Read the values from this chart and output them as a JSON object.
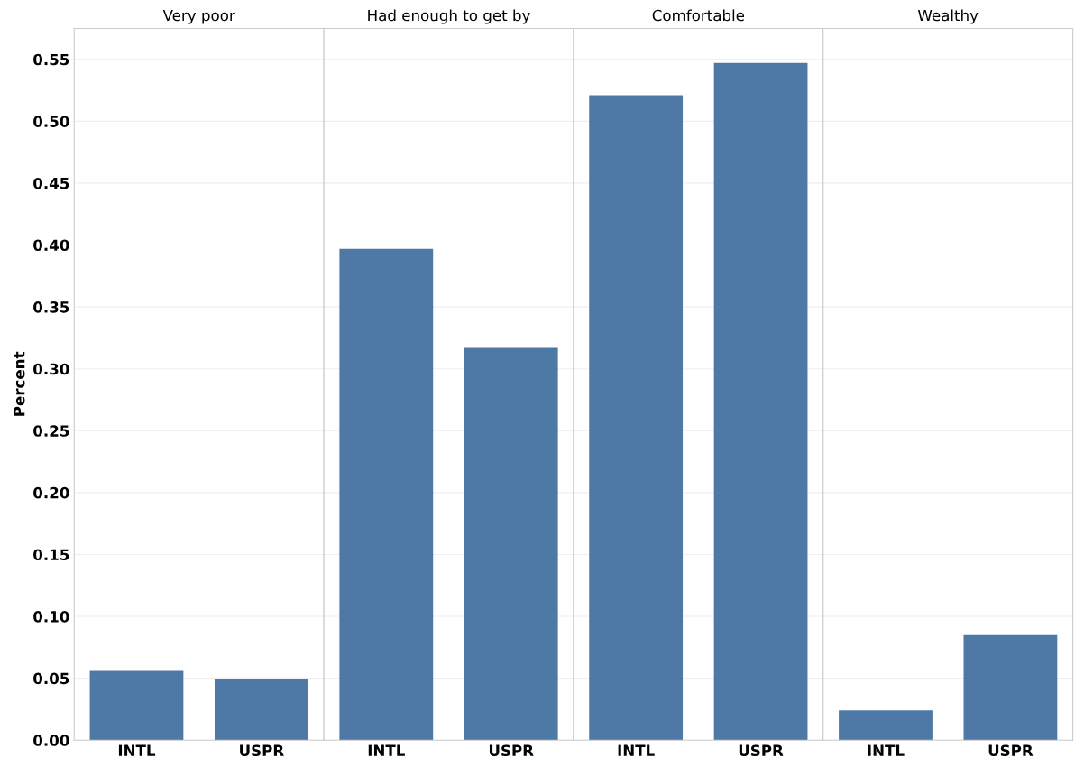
{
  "chart_data": [
    {
      "type": "bar",
      "title": "Very poor",
      "ylabel": "Percent",
      "categories": [
        "INTL",
        "USPR"
      ],
      "values": [
        0.056,
        0.049
      ],
      "color": "#4e79a7",
      "ylim": [
        0,
        0.575
      ],
      "yticks": [
        {
          "value": 0,
          "label": "0.00"
        },
        0.05,
        {
          "value": 0.1,
          "label": "0.10"
        },
        0.15,
        {
          "value": 0.2,
          "label": "0.20"
        },
        0.25,
        {
          "value": 0.3,
          "label": "0.30"
        },
        0.35,
        {
          "value": 0.4,
          "label": "0.40"
        },
        0.45,
        {
          "value": 0.5,
          "label": "0.50"
        },
        0.55
      ],
      "grid": "y"
    },
    {
      "type": "bar",
      "title": "Had enough to get by",
      "categories": [
        "INTL",
        "USPR"
      ],
      "values": [
        0.397,
        0.317
      ],
      "color": "#4e79a7",
      "ylim": [
        0,
        0.575
      ],
      "yticks": [
        {
          "value": 0,
          "label": null
        },
        {
          "value": 0.05,
          "label": null
        },
        {
          "value": 0.1,
          "label": null
        },
        {
          "value": 0.15,
          "label": null
        },
        {
          "value": 0.2,
          "label": null
        },
        {
          "value": 0.25,
          "label": null
        },
        {
          "value": 0.3,
          "label": null
        },
        {
          "value": 0.35,
          "label": null
        },
        {
          "value": 0.4,
          "label": null
        },
        {
          "value": 0.45,
          "label": null
        },
        {
          "value": 0.5,
          "label": null
        },
        {
          "value": 0.55,
          "label": null
        }
      ],
      "grid": "y",
      "tick_labels": "x"
    },
    {
      "type": "bar",
      "title": "Comfortable",
      "categories": [
        "INTL",
        "USPR"
      ],
      "values": [
        0.521,
        0.547
      ],
      "color": "#4e79a7",
      "ylim": [
        0,
        0.575
      ],
      "yticks": [
        {
          "value": 0,
          "label": null
        },
        {
          "value": 0.05,
          "label": null
        },
        {
          "value": 0.1,
          "label": null
        },
        {
          "value": 0.15,
          "label": null
        },
        {
          "value": 0.2,
          "label": null
        },
        {
          "value": 0.25,
          "label": null
        },
        {
          "value": 0.3,
          "label": null
        },
        {
          "value": 0.35,
          "label": null
        },
        {
          "value": 0.4,
          "label": null
        },
        {
          "value": 0.45,
          "label": null
        },
        {
          "value": 0.5,
          "label": null
        },
        {
          "value": 0.55,
          "label": null
        }
      ],
      "grid": "y",
      "tick_labels": "x"
    },
    {
      "type": "bar",
      "title": "Wealthy",
      "categories": [
        "INTL",
        "USPR"
      ],
      "values": [
        0.024,
        0.085
      ],
      "color": "#4e79a7",
      "ylim": [
        0,
        0.575
      ],
      "yticks": [
        {
          "value": 0,
          "label": null
        },
        {
          "value": 0.05,
          "label": null
        },
        {
          "value": 0.1,
          "label": null
        },
        {
          "value": 0.15,
          "label": null
        },
        {
          "value": 0.2,
          "label": null
        },
        {
          "value": 0.25,
          "label": null
        },
        {
          "value": 0.3,
          "label": null
        },
        {
          "value": 0.35,
          "label": null
        },
        {
          "value": 0.4,
          "label": null
        },
        {
          "value": 0.45,
          "label": null
        },
        {
          "value": 0.5,
          "label": null
        },
        {
          "value": 0.55,
          "label": null
        }
      ],
      "grid": "y",
      "tick_labels": "x"
    }
  ]
}
